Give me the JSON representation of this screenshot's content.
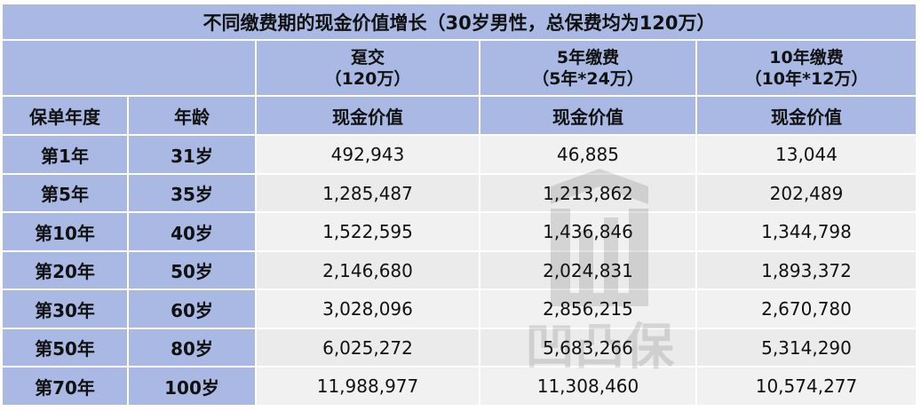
{
  "title": "不同缴费期的现金价值增长（30岁男性，总保费均为120万）",
  "plans": [
    {
      "line1": "趸交",
      "line2": "（120万）"
    },
    {
      "line1": "5年缴费",
      "line2": "（5年*24万）"
    },
    {
      "line1": "10年缴费",
      "line2": "（10年*12万）"
    }
  ],
  "columns": {
    "year": "保单年度",
    "age": "年龄",
    "cash_value": "现金价值"
  },
  "rows": [
    {
      "year": "第1年",
      "age": "31岁",
      "values": [
        "492,943",
        "46,885",
        "13,044"
      ]
    },
    {
      "year": "第5年",
      "age": "35岁",
      "values": [
        "1,285,487",
        "1,213,862",
        "202,489"
      ]
    },
    {
      "year": "第10年",
      "age": "40岁",
      "values": [
        "1,522,595",
        "1,436,846",
        "1,344,798"
      ]
    },
    {
      "year": "第20年",
      "age": "50岁",
      "values": [
        "2,146,680",
        "2,024,831",
        "1,893,372"
      ]
    },
    {
      "year": "第30年",
      "age": "60岁",
      "values": [
        "3,028,096",
        "2,856,215",
        "2,670,780"
      ]
    },
    {
      "year": "第50年",
      "age": "80岁",
      "values": [
        "6,025,272",
        "5,683,266",
        "5,314,290"
      ]
    },
    {
      "year": "第70年",
      "age": "100岁",
      "values": [
        "11,988,977",
        "11,308,460",
        "10,574,277"
      ]
    }
  ],
  "watermark": {
    "text": "凹凸保"
  },
  "colors": {
    "header_bg": "#a9b9e3",
    "cell_bg": "#f1f1f1",
    "border": "#ffffff"
  }
}
